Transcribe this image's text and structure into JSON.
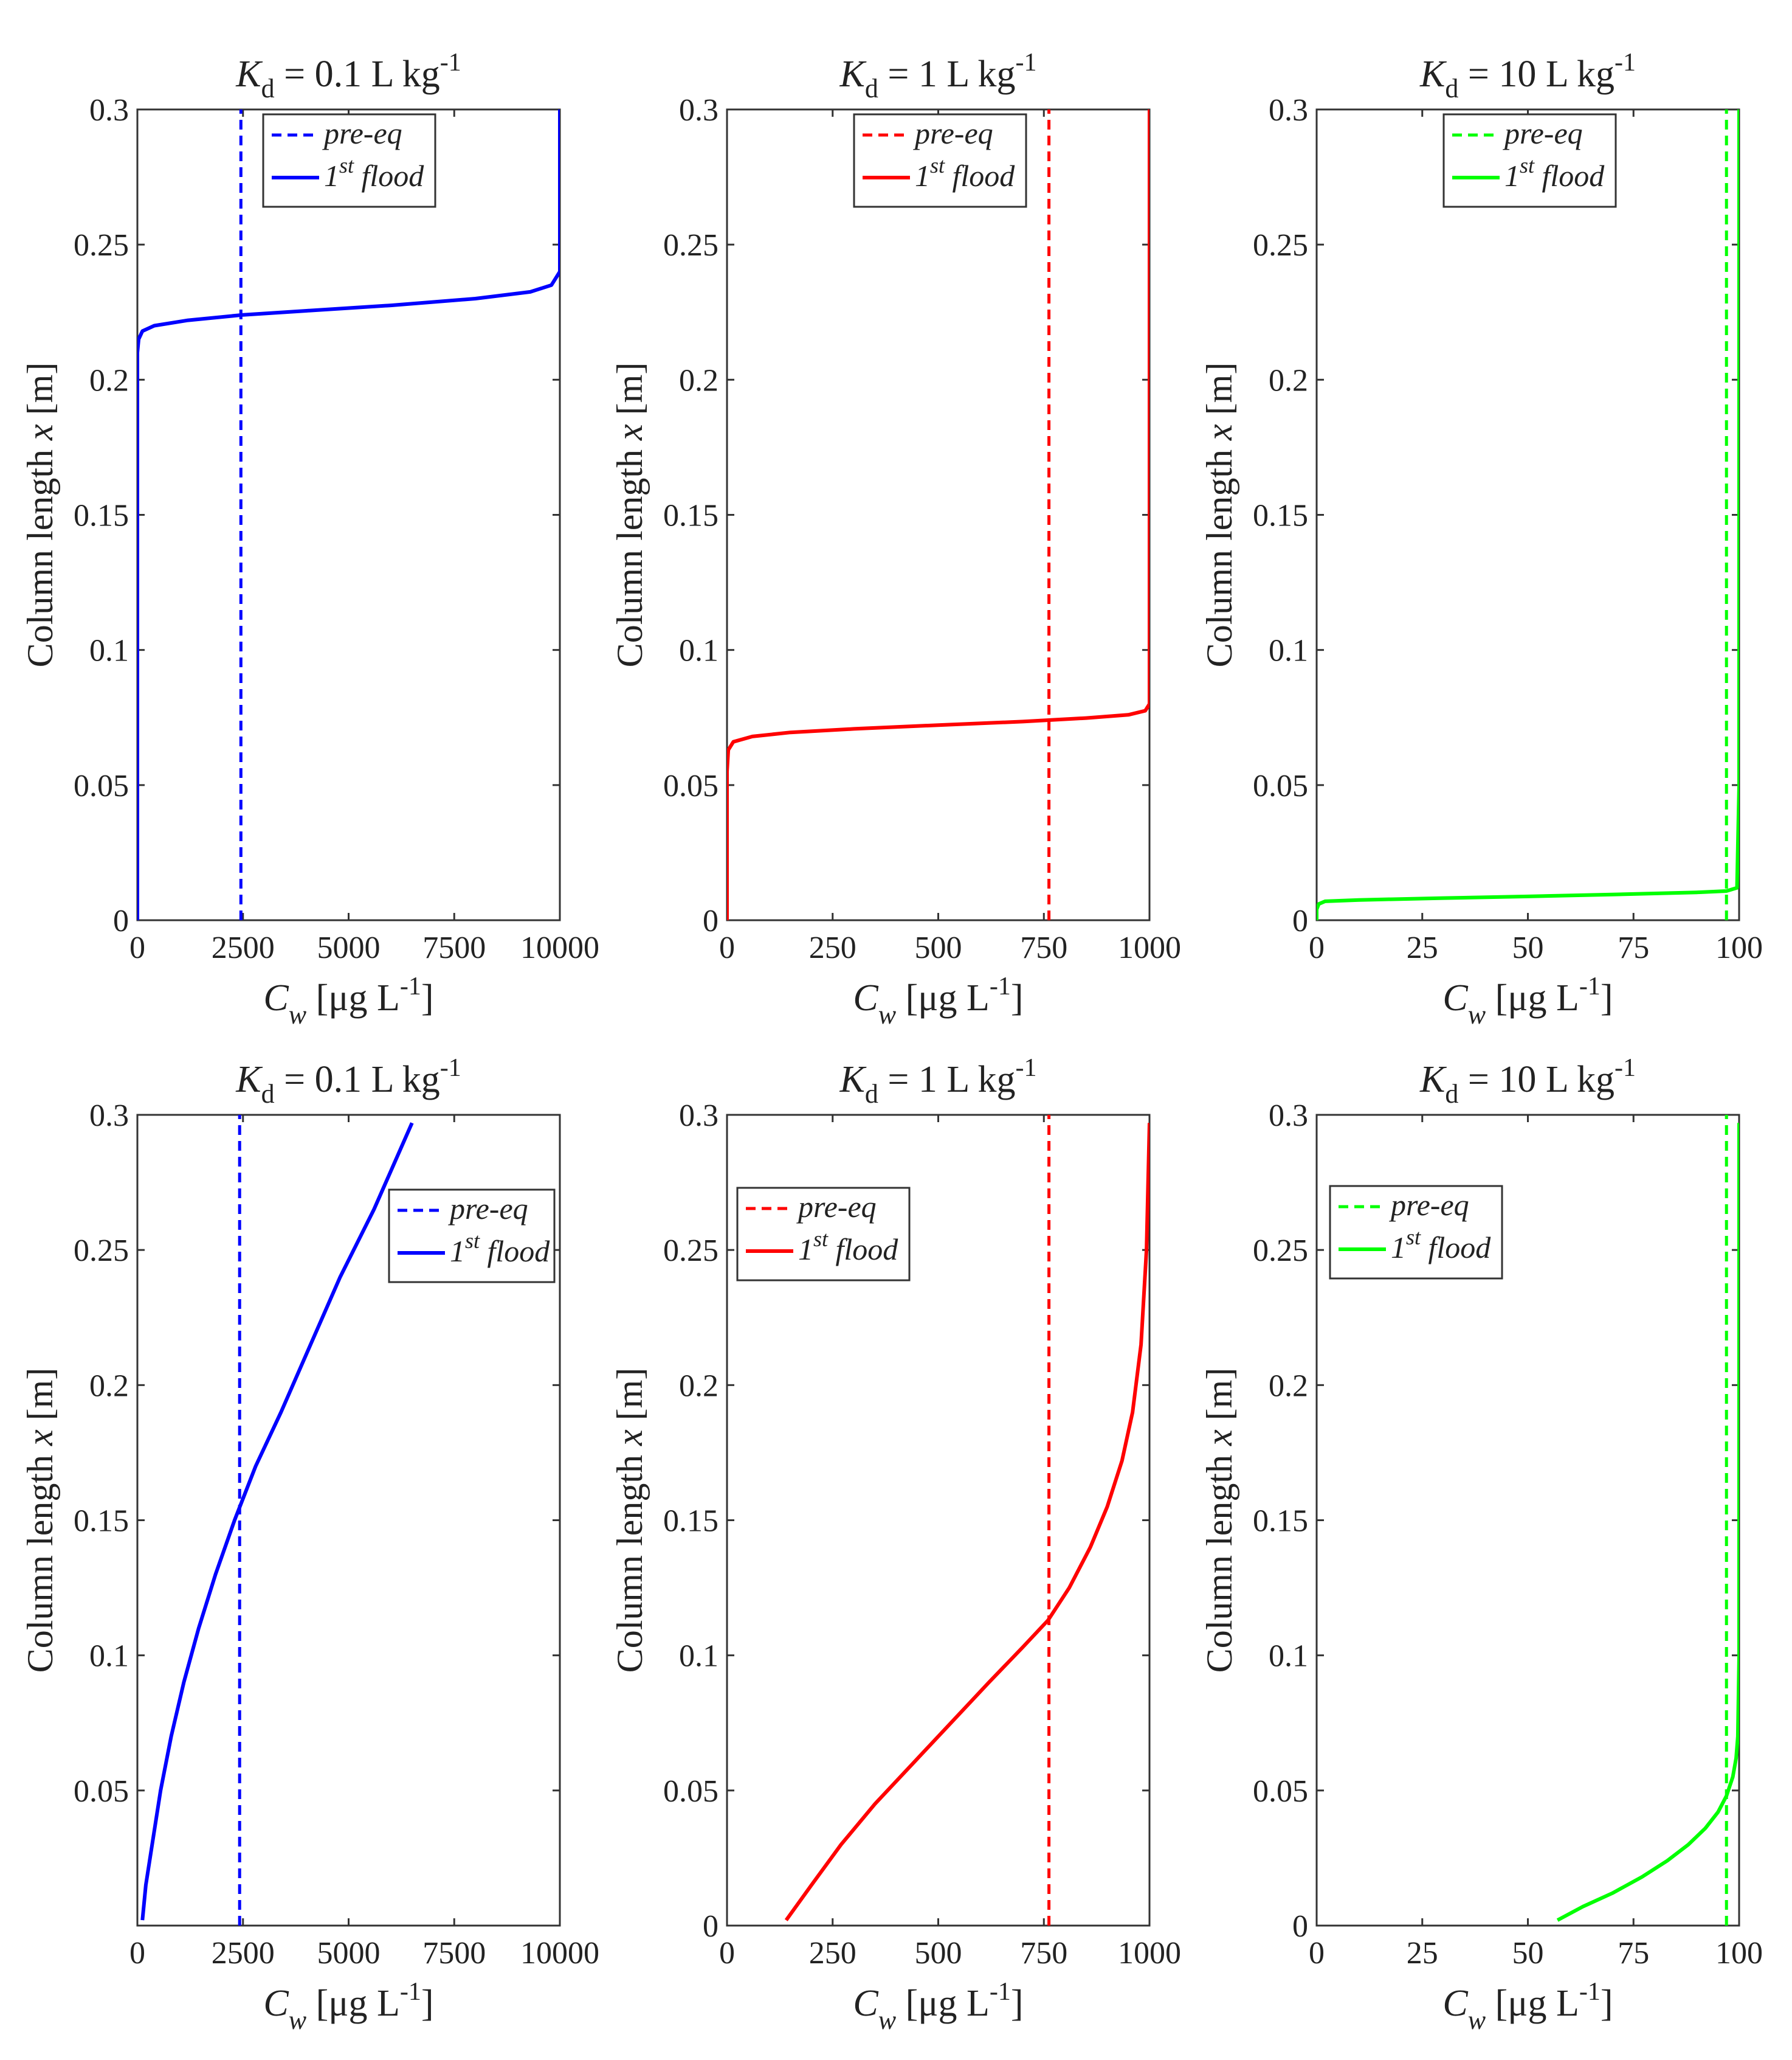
{
  "chart_data": [
    {
      "type": "line",
      "panel": "top-left",
      "title": "K_d = 0.1 L kg^-1",
      "title_parts": {
        "symbol": "K",
        "sub": "d",
        "value": "= 0.1 L kg",
        "sup": "-1"
      },
      "xlabel_parts": {
        "symbol": "C",
        "sub": "w",
        "unit": "[μg L",
        "sup": "-1",
        "close": "]"
      },
      "ylabel_parts": {
        "text": "Column length ",
        "var": "x",
        "unit": " [m]"
      },
      "xlim": [
        0,
        10000
      ],
      "ylim": [
        0,
        0.3
      ],
      "xticks": [
        0,
        2500,
        5000,
        7500,
        10000
      ],
      "yticks": [
        0,
        0.05,
        0.1,
        0.15,
        0.2,
        0.25,
        0.3
      ],
      "yticklabels": [
        "0",
        "0.05",
        "0.1",
        "0.15",
        "0.2",
        "0.25",
        "0.3"
      ],
      "color": "#0000ff",
      "legend_position": "top-center",
      "legend": [
        {
          "label": "pre-eq",
          "style": "dashed"
        },
        {
          "label": "1st flood",
          "ord": "1",
          "sup": "st",
          "rest": "flood",
          "style": "solid"
        }
      ],
      "series": [
        {
          "name": "pre-eq",
          "style": "dashed",
          "x": [
            2450,
            2450
          ],
          "y": [
            0,
            0.3
          ]
        },
        {
          "name": "1st flood",
          "style": "solid",
          "x": [
            0,
            0,
            0,
            30,
            120,
            400,
            1200,
            2500,
            4000,
            6000,
            8000,
            9300,
            9800,
            10000,
            10000,
            10000
          ],
          "y": [
            0,
            0.1,
            0.21,
            0.215,
            0.218,
            0.22,
            0.222,
            0.224,
            0.2255,
            0.2275,
            0.23,
            0.2325,
            0.235,
            0.24,
            0.27,
            0.3
          ]
        }
      ]
    },
    {
      "type": "line",
      "panel": "top-middle",
      "title": "K_d = 1 L kg^-1",
      "title_parts": {
        "symbol": "K",
        "sub": "d",
        "value": "= 1 L kg",
        "sup": "-1"
      },
      "xlabel_parts": {
        "symbol": "C",
        "sub": "w",
        "unit": "[μg L",
        "sup": "-1",
        "close": "]"
      },
      "ylabel_parts": {
        "text": "Column length ",
        "var": "x",
        "unit": " [m]"
      },
      "xlim": [
        0,
        1000
      ],
      "ylim": [
        0,
        0.3
      ],
      "xticks": [
        0,
        250,
        500,
        750,
        1000
      ],
      "yticks": [
        0,
        0.05,
        0.1,
        0.15,
        0.2,
        0.25,
        0.3
      ],
      "yticklabels": [
        "0",
        "0.05",
        "0.1",
        "0.15",
        "0.2",
        "0.25",
        "0.3"
      ],
      "color": "#ff0000",
      "legend_position": "top-center",
      "legend": [
        {
          "label": "pre-eq",
          "style": "dashed"
        },
        {
          "label": "1st flood",
          "ord": "1",
          "sup": "st",
          "rest": "flood",
          "style": "solid"
        }
      ],
      "series": [
        {
          "name": "pre-eq",
          "style": "dashed",
          "x": [
            762,
            762
          ],
          "y": [
            0,
            0.3
          ]
        },
        {
          "name": "1st flood",
          "style": "solid",
          "x": [
            0,
            0,
            3,
            15,
            60,
            150,
            300,
            500,
            700,
            850,
            950,
            990,
            1000,
            1000,
            1000
          ],
          "y": [
            0,
            0.055,
            0.063,
            0.066,
            0.068,
            0.0695,
            0.0708,
            0.0722,
            0.0735,
            0.0748,
            0.076,
            0.0775,
            0.08,
            0.2,
            0.3
          ]
        }
      ]
    },
    {
      "type": "line",
      "panel": "top-right",
      "title": "K_d = 10 L kg^-1",
      "title_parts": {
        "symbol": "K",
        "sub": "d",
        "value": "= 10 L kg",
        "sup": "-1"
      },
      "xlabel_parts": {
        "symbol": "C",
        "sub": "w",
        "unit": "[μg L",
        "sup": "-1",
        "close": "]"
      },
      "ylabel_parts": {
        "text": "Column length ",
        "var": "x",
        "unit": " [m]"
      },
      "xlim": [
        0,
        100
      ],
      "ylim": [
        0,
        0.3
      ],
      "xticks": [
        0,
        25,
        50,
        75,
        100
      ],
      "yticks": [
        0,
        0.05,
        0.1,
        0.15,
        0.2,
        0.25,
        0.3
      ],
      "yticklabels": [
        "0",
        "0.05",
        "0.1",
        "0.15",
        "0.2",
        "0.25",
        "0.3"
      ],
      "color": "#00ff00",
      "legend_position": "top-center",
      "legend": [
        {
          "label": "pre-eq",
          "style": "dashed"
        },
        {
          "label": "1st flood",
          "ord": "1",
          "sup": "st",
          "rest": "flood",
          "style": "solid"
        }
      ],
      "series": [
        {
          "name": "pre-eq",
          "style": "dashed",
          "x": [
            97,
            97
          ],
          "y": [
            0,
            0.3
          ]
        },
        {
          "name": "1st flood",
          "style": "solid",
          "x": [
            0,
            0,
            0.5,
            2,
            10,
            30,
            50,
            70,
            90,
            97,
            99.5,
            100,
            100
          ],
          "y": [
            0,
            0.004,
            0.006,
            0.007,
            0.0075,
            0.0082,
            0.0088,
            0.0095,
            0.0103,
            0.0108,
            0.012,
            0.05,
            0.3
          ]
        }
      ]
    },
    {
      "type": "line",
      "panel": "bottom-left",
      "title": "K_d = 0.1 L kg^-1",
      "title_parts": {
        "symbol": "K",
        "sub": "d",
        "value": "= 0.1 L kg",
        "sup": "-1"
      },
      "xlabel_parts": {
        "symbol": "C",
        "sub": "w",
        "unit": "[μg L",
        "sup": "-1",
        "close": "]"
      },
      "ylabel_parts": {
        "text": "Column length ",
        "var": "x",
        "unit": " [m]"
      },
      "xlim": [
        0,
        10000
      ],
      "ylim": [
        0,
        0.3
      ],
      "xticks": [
        0,
        2500,
        5000,
        7500,
        10000
      ],
      "yticks": [
        0.05,
        0.1,
        0.15,
        0.2,
        0.25,
        0.3
      ],
      "yticklabels": [
        "0.05",
        "0.1",
        "0.15",
        "0.2",
        "0.25",
        "0.3"
      ],
      "color": "#0000ff",
      "legend_position": "upper-right",
      "legend": [
        {
          "label": "pre-eq",
          "style": "dashed"
        },
        {
          "label": "1st flood",
          "ord": "1",
          "sup": "st",
          "rest": "flood",
          "style": "solid"
        }
      ],
      "series": [
        {
          "name": "pre-eq",
          "style": "dashed",
          "x": [
            2420,
            2420
          ],
          "y": [
            0,
            0.3
          ]
        },
        {
          "name": "1st flood",
          "style": "solid",
          "x": [
            120,
            200,
            350,
            550,
            800,
            1100,
            1450,
            1850,
            2300,
            2800,
            3400,
            4100,
            4800,
            5600,
            6500
          ],
          "y": [
            0.002,
            0.015,
            0.03,
            0.05,
            0.07,
            0.09,
            0.11,
            0.13,
            0.15,
            0.17,
            0.19,
            0.215,
            0.24,
            0.265,
            0.297
          ]
        }
      ]
    },
    {
      "type": "line",
      "panel": "bottom-middle",
      "title": "K_d = 1 L kg^-1",
      "title_parts": {
        "symbol": "K",
        "sub": "d",
        "value": "= 1 L kg",
        "sup": "-1"
      },
      "xlabel_parts": {
        "symbol": "C",
        "sub": "w",
        "unit": "[μg L",
        "sup": "-1",
        "close": "]"
      },
      "ylabel_parts": {
        "text": "Column length ",
        "var": "x",
        "unit": " [m]"
      },
      "xlim": [
        0,
        1000
      ],
      "ylim": [
        0,
        0.3
      ],
      "xticks": [
        0,
        250,
        500,
        750,
        1000
      ],
      "yticks": [
        0,
        0.05,
        0.1,
        0.15,
        0.2,
        0.25,
        0.3
      ],
      "yticklabels": [
        "0",
        "0.05",
        "0.1",
        "0.15",
        "0.2",
        "0.25",
        "0.3"
      ],
      "color": "#ff0000",
      "legend_position": "upper-left",
      "legend": [
        {
          "label": "pre-eq",
          "style": "dashed"
        },
        {
          "label": "1st flood",
          "ord": "1",
          "sup": "st",
          "rest": "flood",
          "style": "solid"
        }
      ],
      "series": [
        {
          "name": "pre-eq",
          "style": "dashed",
          "x": [
            762,
            762
          ],
          "y": [
            0,
            0.3
          ]
        },
        {
          "name": "1st flood",
          "style": "solid",
          "x": [
            140,
            200,
            270,
            350,
            440,
            530,
            620,
            700,
            760,
            810,
            860,
            900,
            935,
            960,
            980,
            993,
            1000
          ],
          "y": [
            0.002,
            0.015,
            0.03,
            0.045,
            0.06,
            0.075,
            0.09,
            0.103,
            0.113,
            0.125,
            0.14,
            0.155,
            0.172,
            0.19,
            0.215,
            0.25,
            0.297
          ]
        }
      ]
    },
    {
      "type": "line",
      "panel": "bottom-right",
      "title": "K_d = 10 L kg^-1",
      "title_parts": {
        "symbol": "K",
        "sub": "d",
        "value": "= 10 L kg",
        "sup": "-1"
      },
      "xlabel_parts": {
        "symbol": "C",
        "sub": "w",
        "unit": "[μg L",
        "sup": "-1",
        "close": "]"
      },
      "ylabel_parts": {
        "text": "Column length ",
        "var": "x",
        "unit": " [m]"
      },
      "xlim": [
        0,
        100
      ],
      "ylim": [
        0,
        0.3
      ],
      "xticks": [
        0,
        25,
        50,
        75,
        100
      ],
      "yticks": [
        0,
        0.05,
        0.1,
        0.15,
        0.2,
        0.25,
        0.3
      ],
      "yticklabels": [
        "0",
        "0.05",
        "0.1",
        "0.15",
        "0.2",
        "0.25",
        "0.3"
      ],
      "color": "#00ff00",
      "legend_position": "upper-left",
      "legend": [
        {
          "label": "pre-eq",
          "style": "dashed"
        },
        {
          "label": "1st flood",
          "ord": "1",
          "sup": "st",
          "rest": "flood",
          "style": "solid"
        }
      ],
      "series": [
        {
          "name": "pre-eq",
          "style": "dashed",
          "x": [
            97,
            97
          ],
          "y": [
            0,
            0.3
          ]
        },
        {
          "name": "1st flood",
          "style": "solid",
          "x": [
            57,
            63,
            70,
            77,
            83,
            88,
            92,
            95,
            97,
            98.5,
            99.3,
            99.7,
            100,
            100
          ],
          "y": [
            0.002,
            0.007,
            0.012,
            0.018,
            0.024,
            0.03,
            0.036,
            0.042,
            0.048,
            0.055,
            0.062,
            0.07,
            0.1,
            0.297
          ]
        }
      ]
    }
  ]
}
